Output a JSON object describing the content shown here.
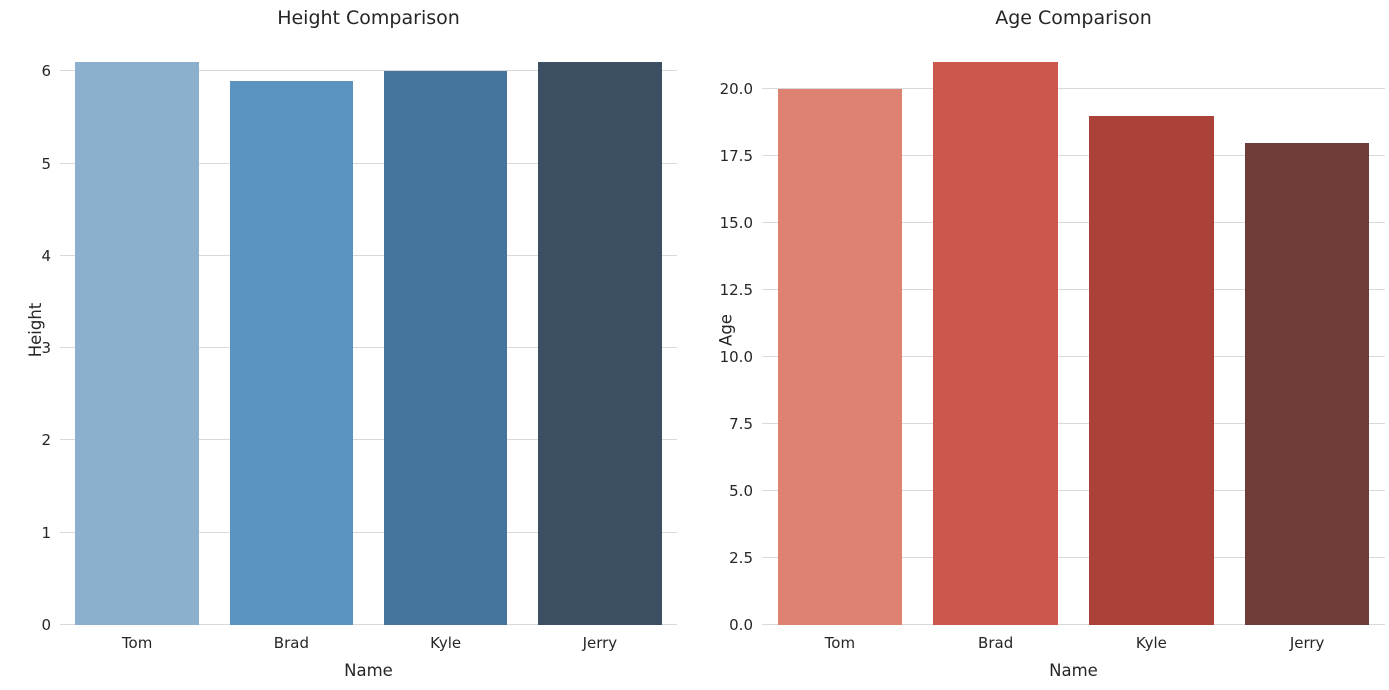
{
  "chart_data": [
    {
      "type": "bar",
      "title": "Height Comparison",
      "xlabel": "Name",
      "ylabel": "Height",
      "categories": [
        "Tom",
        "Brad",
        "Kyle",
        "Jerry"
      ],
      "values": [
        6.1,
        5.9,
        6.0,
        6.1
      ],
      "ylim": [
        0,
        6.405
      ],
      "yticks": [
        0,
        1,
        2,
        3,
        4,
        5,
        6
      ],
      "ytick_labels": [
        "0",
        "1",
        "2",
        "3",
        "4",
        "5",
        "6"
      ],
      "bar_colors": [
        "#8bafcd",
        "#5c92be",
        "#45759d",
        "#3c4f63"
      ],
      "grid": true,
      "legend": false,
      "bar_width_fraction": 0.8
    },
    {
      "type": "bar",
      "title": "Age Comparison",
      "xlabel": "Name",
      "ylabel": "Age",
      "categories": [
        "Tom",
        "Brad",
        "Kyle",
        "Jerry"
      ],
      "values": [
        20,
        21,
        19,
        18
      ],
      "ylim": [
        0,
        22.05
      ],
      "yticks": [
        0,
        2.5,
        5,
        7.5,
        10,
        12.5,
        15,
        17.5,
        20
      ],
      "ytick_labels": [
        "0.0",
        "2.5",
        "5.0",
        "7.5",
        "10.0",
        "12.5",
        "15.0",
        "17.5",
        "20.0"
      ],
      "bar_colors": [
        "#dd8173",
        "#cc574d",
        "#aa4239",
        "#6f3c38"
      ],
      "grid": true,
      "legend": false,
      "bar_width_fraction": 0.8
    }
  ],
  "style": {
    "background_color": "#ffffff",
    "grid_color": "#d9d9d9",
    "text_color": "#262626"
  }
}
